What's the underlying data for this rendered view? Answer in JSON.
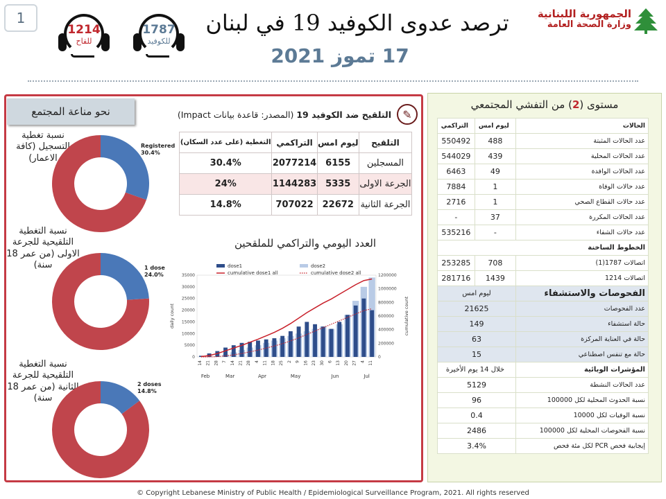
{
  "page_number": "1",
  "header": {
    "title": "ترصد عدوى الكوفيد 19 في لبنان",
    "date": "17 تموز 2021",
    "ministry_line1": "الجمهورية اللبنانية",
    "ministry_line2": "وزارة الصحة العامة",
    "hotline_vaccine": {
      "number": "1214",
      "label": "للقاح"
    },
    "hotline_covid": {
      "number": "1787",
      "label": "للكوفيد"
    }
  },
  "colors": {
    "panel_border": "#c53a44",
    "blue": "#4a78b8",
    "red": "#c0454c"
  },
  "community": {
    "label": "نحو مناعة المجتمع",
    "donuts": [
      {
        "caption": "نسبة تغطية التسجيل (كافة الاعمار)",
        "name": "Registered",
        "percent": 30.4,
        "percent_text": "30.4%"
      },
      {
        "caption": "نسبة التغطية التلقيحية للجرعة الاولى (من عمر 18 سنة)",
        "name": "1 dose",
        "percent": 24.0,
        "percent_text": "24.0%"
      },
      {
        "caption": "نسبة التغطية التلقيحية للجرعة الثانية (من عمر 18 سنة)",
        "name": "2 doses",
        "percent": 14.8,
        "percent_text": "14.8%"
      }
    ]
  },
  "vaccination": {
    "heading_bold": "التلقيح ضد الكوفيد 19",
    "heading_rest": " (المصدر: قاعدة بيانات Impact)",
    "columns": [
      "التلقيح",
      "ليوم امس",
      "التراكمي",
      "التغطية (على عدد السكان)"
    ],
    "rows": [
      {
        "label": "المسجلين",
        "yesterday": "6155",
        "cumulative": "2077214",
        "coverage": "30.4%"
      },
      {
        "label": "الجرعة الاولى",
        "yesterday": "5335",
        "cumulative": "1144283",
        "coverage": "24%"
      },
      {
        "label": "الجرعة الثانية",
        "yesterday": "22672",
        "cumulative": "707022",
        "coverage": "14.8%"
      }
    ],
    "chart_title": "العدد اليومي والتراكمي للملقحين"
  },
  "chart_data": {
    "type": "bar",
    "series": [
      {
        "name": "dose1",
        "type": "bar",
        "color": "#2e4d8a"
      },
      {
        "name": "dose2",
        "type": "bar",
        "color": "#b9cbe6"
      },
      {
        "name": "cumulative dose1 all",
        "type": "line",
        "color": "#c8202a"
      },
      {
        "name": "cumulative dose2 all",
        "type": "line",
        "color": "#c8202a",
        "style": "dotted"
      }
    ],
    "ylabel_left": "daily count",
    "ylabel_right": "cumulative count",
    "ylim_left": [
      0,
      35000
    ],
    "ylim_right": [
      0,
      1200000
    ],
    "y_ticks_left": [
      "0",
      "5000",
      "10000",
      "15000",
      "20000",
      "25000",
      "30000",
      "35000"
    ],
    "y_ticks_right": [
      "0",
      "200000",
      "400000",
      "600000",
      "800000",
      "1000000",
      "1200000"
    ],
    "months": [
      "Feb",
      "Mar",
      "Apr",
      "May",
      "Jun",
      "Jul"
    ],
    "day_ticks": [
      "14",
      "21",
      "28",
      "7",
      "14",
      "21",
      "28",
      "4",
      "11",
      "18",
      "25",
      "2",
      "9",
      "16",
      "23",
      "30",
      "6",
      "13",
      "20",
      "27",
      "4",
      "11"
    ],
    "dose1_weekly": [
      500,
      1500,
      2500,
      4000,
      5000,
      6000,
      6500,
      7000,
      7500,
      8000,
      9000,
      11000,
      13000,
      15000,
      14000,
      13000,
      12000,
      15000,
      18000,
      22000,
      25000,
      20000
    ],
    "dose2_weekly": [
      0,
      0,
      200,
      1000,
      2000,
      3000,
      4000,
      5000,
      6000,
      7000,
      8000,
      9000,
      10000,
      11000,
      12000,
      13000,
      12000,
      14000,
      18000,
      24000,
      30000,
      34000
    ],
    "cum_dose1": [
      5000,
      20000,
      50000,
      90000,
      130000,
      170000,
      215000,
      260000,
      310000,
      360000,
      420000,
      490000,
      570000,
      650000,
      720000,
      790000,
      850000,
      920000,
      990000,
      1060000,
      1120000,
      1144283
    ],
    "cum_dose2": [
      0,
      0,
      5000,
      15000,
      30000,
      50000,
      75000,
      100000,
      130000,
      160000,
      195000,
      235000,
      280000,
      330000,
      380000,
      430000,
      480000,
      530000,
      580000,
      630000,
      680000,
      707022
    ]
  },
  "spread": {
    "level_prefix": "مستوى (",
    "level_number": "2",
    "level_suffix": ") من التفشي المجتمعي",
    "cases_header": "الحالات",
    "col_yesterday": "ليوم امس",
    "col_cumulative": "التراكمي",
    "cases": [
      {
        "label": "عدد الحالات المثبتة",
        "yesterday": "488",
        "cumulative": "550492"
      },
      {
        "label": "عدد الحالات المحلية",
        "yesterday": "439",
        "cumulative": "544029"
      },
      {
        "label": "عدد الحالات الوافدة",
        "yesterday": "49",
        "cumulative": "6463"
      },
      {
        "label": "عدد حالات الوفاة",
        "yesterday": "1",
        "cumulative": "7884"
      },
      {
        "label": "عدد حالات القطاع الصحي",
        "yesterday": "1",
        "cumulative": "2716"
      },
      {
        "label": "عدد الحالات المكررة",
        "yesterday": "37",
        "cumulative": "-"
      },
      {
        "label": "عدد حالات الشفاء",
        "yesterday": "-",
        "cumulative": "535216"
      }
    ],
    "hotlines_header": "الخطوط الساخنة",
    "hotlines": [
      {
        "label": "اتصالات 1787(1)",
        "yesterday": "708",
        "cumulative": "253285"
      },
      {
        "label": "اتصالات 1214",
        "yesterday": "1439",
        "cumulative": "281716"
      }
    ],
    "tests_header": "الفحوصات والاستشفاء",
    "tests_col": "ليوم امس",
    "tests": [
      {
        "label": "عدد الفحوصات",
        "value": "21625"
      },
      {
        "label": "حالة استشفاء",
        "value": "149"
      },
      {
        "label": "حالة في العناية المركزة",
        "value": "63"
      },
      {
        "label": "حالة مع تنفس اصطناعي",
        "value": "15"
      }
    ],
    "indicators_header": "المؤشرات الوبائية",
    "indicators_col": "خلال 14 يوم الأخيرة",
    "indicators": [
      {
        "label": "عدد الحالات النشطة",
        "value": "5129"
      },
      {
        "label": "نسبة الحدوث المحلية لكل 100000",
        "value": "96"
      },
      {
        "label": "نسبة الوفيات لكل 10000",
        "value": "0.4"
      },
      {
        "label": "نسبة الفحوصات المحلية لكل 100000",
        "value": "2486"
      },
      {
        "label": "إيجابية فحص PCR لكل مئة فحص",
        "value": "3.4%"
      }
    ]
  },
  "footer": {
    "copyright": "© Copyright Lebanese Ministry of Public Health / Epidemiological Surveillance Program, 2021. All rights reserved"
  }
}
